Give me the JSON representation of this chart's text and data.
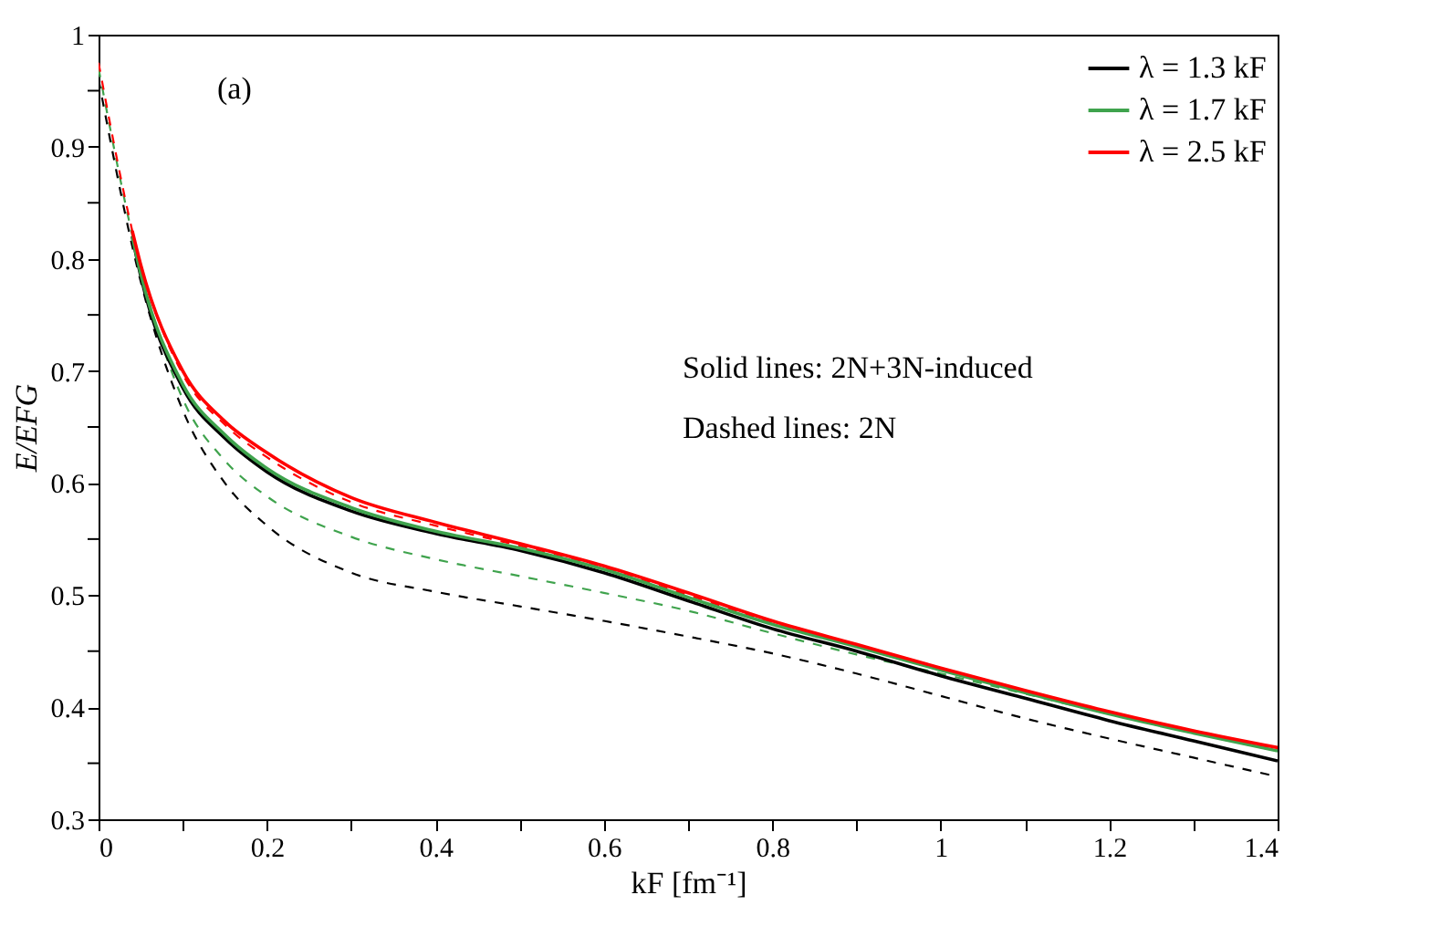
{
  "chart_data": {
    "type": "line",
    "xlabel": "kF [fm⁻¹]",
    "ylabel": "E/EFG",
    "xlim": [
      0,
      1.4
    ],
    "ylim": [
      0.3,
      1
    ],
    "xticks": [
      0,
      {
        "value": 0.1,
        "label": null
      },
      0.2,
      {
        "value": 0.3,
        "label": null
      },
      0.4,
      {
        "value": 0.5,
        "label": null
      },
      0.6,
      {
        "value": 0.7,
        "label": null
      },
      0.8,
      {
        "value": 0.9,
        "label": null
      },
      1,
      {
        "value": 1.1,
        "label": null
      },
      1.2,
      {
        "value": 1.3,
        "label": null
      },
      1.4
    ],
    "yticks": [
      0.3,
      {
        "value": 0.35,
        "label": null
      },
      0.4,
      {
        "value": 0.45,
        "label": null
      },
      0.5,
      {
        "value": 0.55,
        "label": null
      },
      0.6,
      {
        "value": 0.65,
        "label": null
      },
      0.7,
      {
        "value": 0.75,
        "label": null
      },
      0.8,
      {
        "value": 0.85,
        "label": null
      },
      0.9,
      {
        "value": 0.95,
        "label": null
      },
      1
    ],
    "grid": false,
    "legend": "top right",
    "annotations": [
      "(a)",
      "Solid lines: 2N+3N-induced",
      "Dashed lines: 2N"
    ],
    "series": [
      {
        "name": "λ = 1.3 kF",
        "color": "#000000",
        "line_style": "solid",
        "x": [
          0.04,
          0.05,
          0.1,
          0.15,
          0.2,
          0.3,
          0.4,
          0.5,
          0.6,
          0.7,
          0.8,
          0.9,
          1.0,
          1.1,
          1.2,
          1.3,
          1.4
        ],
        "values": [
          0.82,
          0.785,
          0.685,
          0.64,
          0.61,
          0.575,
          0.555,
          0.54,
          0.52,
          0.495,
          0.47,
          0.45,
          0.428,
          0.408,
          0.388,
          0.37,
          0.352
        ]
      },
      {
        "name": "λ = 1.7 kF",
        "color": "#3fa34d",
        "line_style": "solid",
        "x": [
          0.04,
          0.05,
          0.1,
          0.15,
          0.2,
          0.3,
          0.4,
          0.5,
          0.6,
          0.7,
          0.8,
          0.9,
          1.0,
          1.1,
          1.2,
          1.3,
          1.4
        ],
        "values": [
          0.82,
          0.787,
          0.688,
          0.643,
          0.613,
          0.578,
          0.557,
          0.542,
          0.523,
          0.498,
          0.474,
          0.454,
          0.433,
          0.413,
          0.394,
          0.377,
          0.361
        ]
      },
      {
        "name": "λ = 2.5 kF",
        "color": "#ff0000",
        "line_style": "solid",
        "x": [
          0.04,
          0.05,
          0.1,
          0.15,
          0.2,
          0.3,
          0.4,
          0.5,
          0.6,
          0.7,
          0.8,
          0.9,
          1.0,
          1.1,
          1.2,
          1.3,
          1.4
        ],
        "values": [
          0.825,
          0.795,
          0.7,
          0.655,
          0.627,
          0.587,
          0.565,
          0.546,
          0.526,
          0.502,
          0.477,
          0.456,
          0.435,
          0.415,
          0.396,
          0.379,
          0.364
        ]
      },
      {
        "color": "#000000",
        "line_style": "dashed",
        "x": [
          0,
          0.05,
          0.1,
          0.15,
          0.2,
          0.3,
          0.4,
          0.5,
          0.6,
          0.7,
          0.8,
          0.9,
          1.0,
          1.1,
          1.2,
          1.3,
          1.4
        ],
        "values": [
          0.96,
          0.78,
          0.665,
          0.6,
          0.562,
          0.52,
          0.503,
          0.49,
          0.477,
          0.463,
          0.448,
          0.43,
          0.41,
          0.39,
          0.372,
          0.355,
          0.338
        ]
      },
      {
        "color": "#3fa34d",
        "line_style": "dashed",
        "x": [
          0,
          0.05,
          0.1,
          0.15,
          0.2,
          0.3,
          0.4,
          0.5,
          0.6,
          0.7,
          0.8,
          0.9,
          1.0,
          1.1,
          1.2,
          1.3,
          1.4
        ],
        "values": [
          0.97,
          0.79,
          0.675,
          0.62,
          0.588,
          0.552,
          0.532,
          0.517,
          0.502,
          0.486,
          0.466,
          0.447,
          0.43,
          0.412,
          0.394,
          0.377,
          0.361
        ]
      },
      {
        "color": "#ff0000",
        "line_style": "dashed",
        "x": [
          0,
          0.05,
          0.1,
          0.15,
          0.2,
          0.3,
          0.4,
          0.5,
          0.6,
          0.7,
          0.8,
          0.9,
          1.0,
          1.1,
          1.2,
          1.3,
          1.4
        ],
        "values": [
          0.975,
          0.795,
          0.697,
          0.652,
          0.623,
          0.583,
          0.562,
          0.544,
          0.524,
          0.5,
          0.476,
          0.455,
          0.434,
          0.414,
          0.395,
          0.378,
          0.363
        ]
      }
    ]
  }
}
